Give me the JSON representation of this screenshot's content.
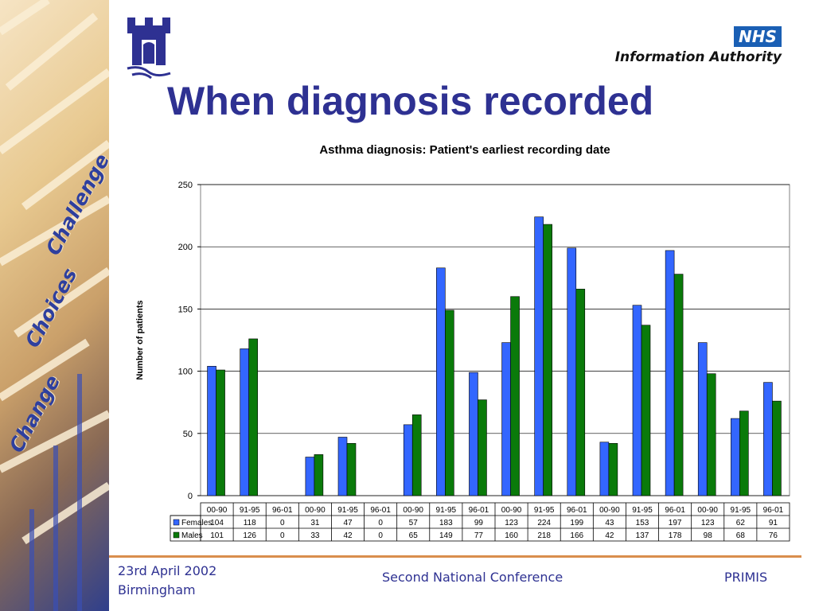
{
  "branding": {
    "nhs_logo": "NHS",
    "nhs_subtitle": "Information Authority",
    "side_words": [
      "Challenge",
      "Choices",
      "Change"
    ]
  },
  "page": {
    "title": "When diagnosis recorded"
  },
  "chart_data": {
    "type": "bar",
    "title": "Asthma diagnosis:  Patient's earliest recording date",
    "xlabel": "",
    "ylabel": "Number of patients",
    "ylim": [
      0,
      250
    ],
    "yticks": [
      0,
      50,
      100,
      150,
      200,
      250
    ],
    "grid": true,
    "legend": "data-table",
    "categories": [
      "00-90",
      "91-95",
      "96-01",
      "00-90",
      "91-95",
      "96-01",
      "00-90",
      "91-95",
      "96-01",
      "00-90",
      "91-95",
      "96-01",
      "00-90",
      "91-95",
      "96-01",
      "00-90",
      "91-95",
      "96-01"
    ],
    "series": [
      {
        "name": "Females",
        "color": "#3366ff",
        "values": [
          104,
          118,
          0,
          31,
          47,
          0,
          57,
          183,
          99,
          123,
          224,
          199,
          43,
          153,
          197,
          123,
          62,
          91
        ]
      },
      {
        "name": "Males",
        "color": "#0a7a0a",
        "values": [
          101,
          126,
          0,
          33,
          42,
          0,
          65,
          149,
          77,
          160,
          218,
          166,
          42,
          137,
          178,
          98,
          68,
          76
        ]
      }
    ]
  },
  "footer": {
    "date": "23rd April 2002",
    "place": "Birmingham",
    "conference": "Second National Conference",
    "org": "PRIMIS"
  }
}
